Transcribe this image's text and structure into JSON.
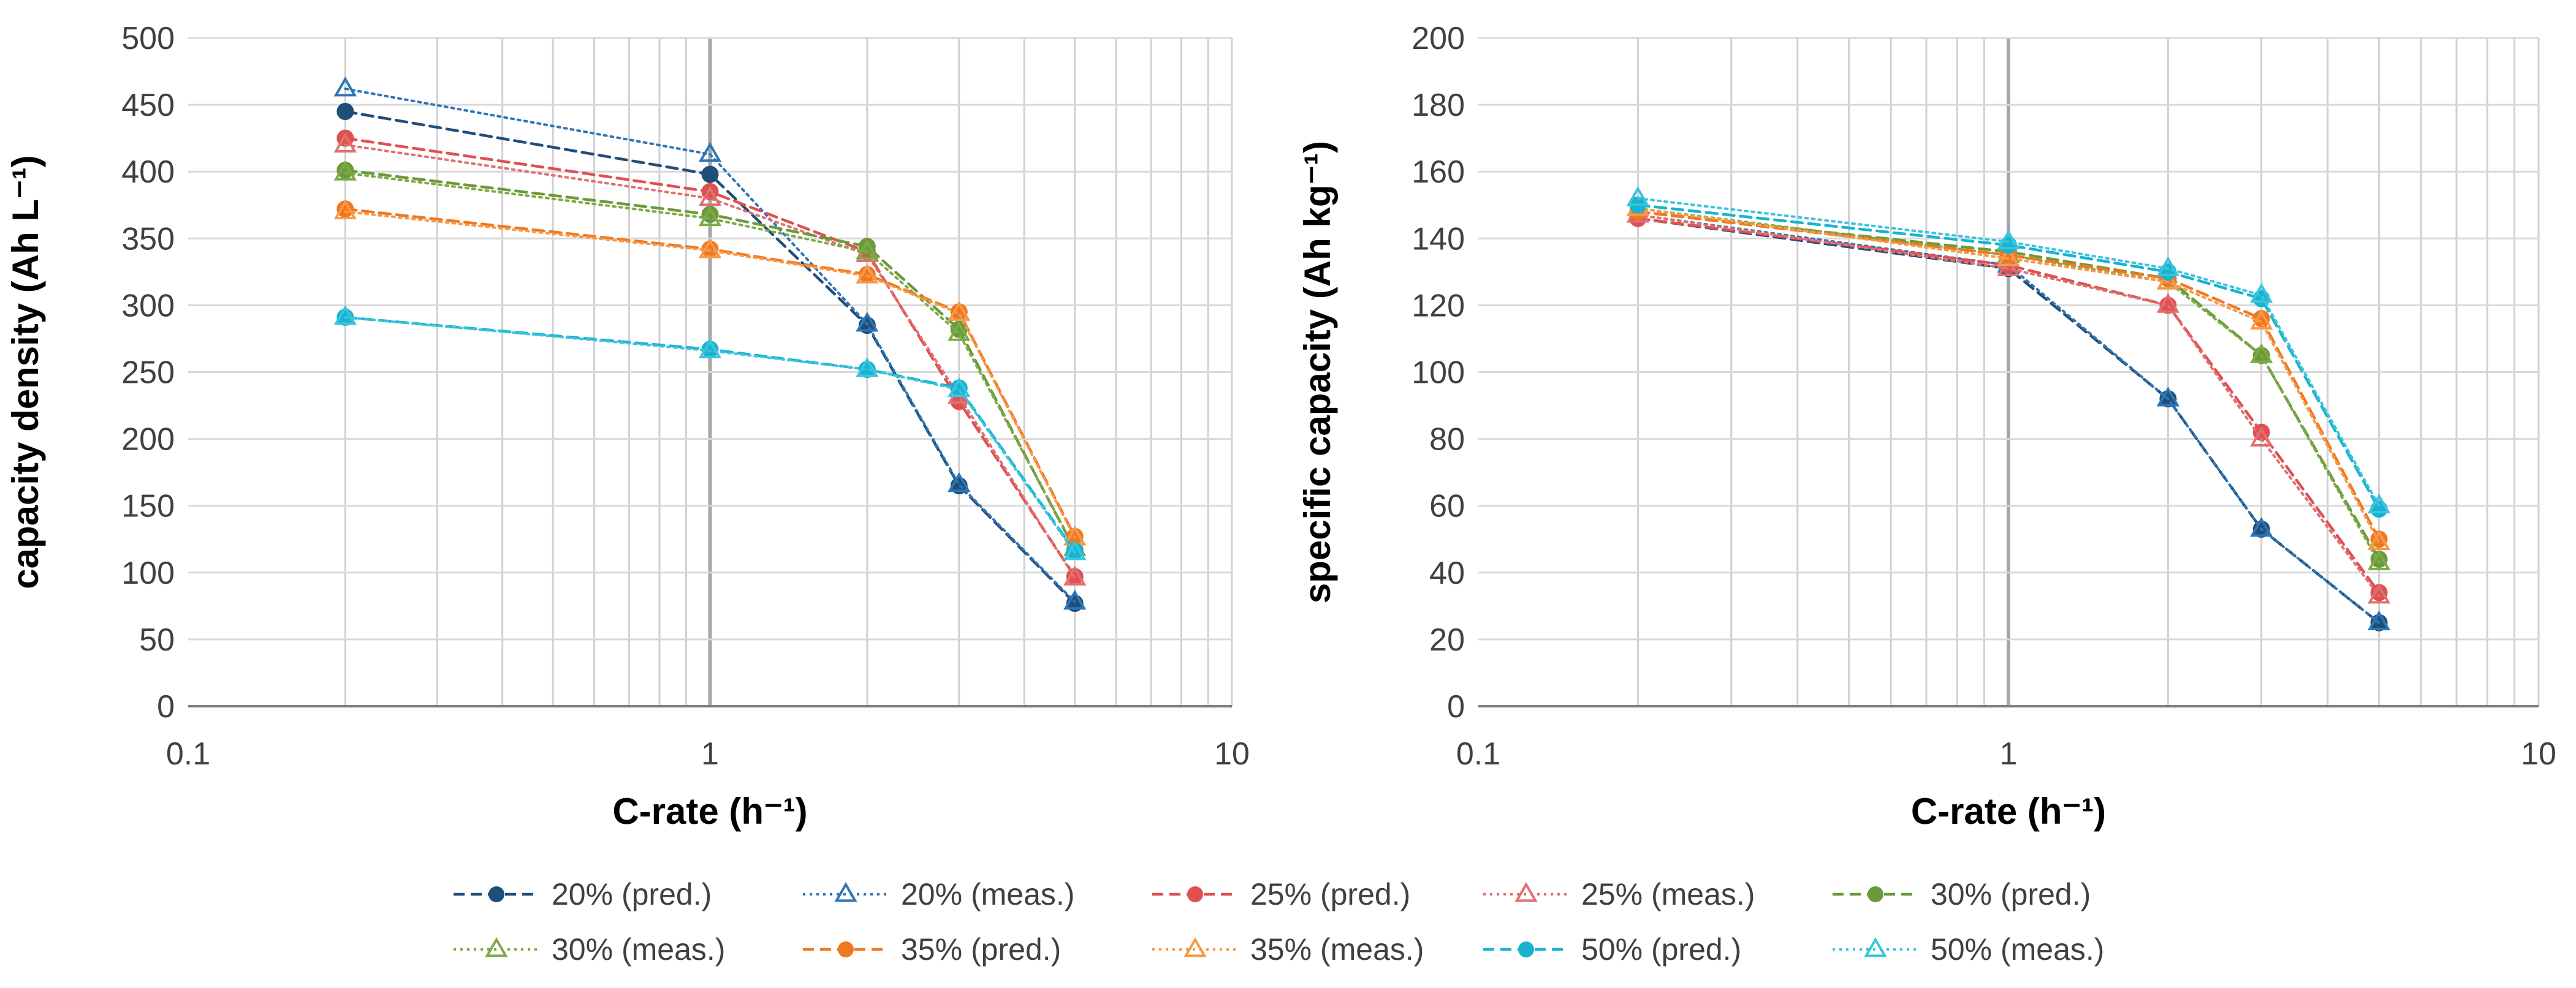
{
  "figure": {
    "legend": [
      {
        "label": "20% (pred.)",
        "color": "#1F4E79",
        "marker": "circle",
        "dash": "dashed"
      },
      {
        "label": "20% (meas.)",
        "color": "#2E75B6",
        "marker": "triangle-open",
        "dash": "dotted"
      },
      {
        "label": "25% (pred.)",
        "color": "#E05050",
        "marker": "circle",
        "dash": "dashed"
      },
      {
        "label": "25% (meas.)",
        "color": "#E07070",
        "marker": "triangle-open",
        "dash": "dotted"
      },
      {
        "label": "30% (pred.)",
        "color": "#6B9A3A",
        "marker": "circle",
        "dash": "dashed"
      },
      {
        "label": "30% (meas.)",
        "color": "#7DAA45",
        "marker": "triangle-open",
        "dash": "dotted"
      },
      {
        "label": "35% (pred.)",
        "color": "#F07820",
        "marker": "circle",
        "dash": "dashed"
      },
      {
        "label": "35% (meas.)",
        "color": "#F59A4A",
        "marker": "triangle-open",
        "dash": "dotted"
      },
      {
        "label": "50% (pred.)",
        "color": "#17B3D0",
        "marker": "circle",
        "dash": "dashed"
      },
      {
        "label": "50% (meas.)",
        "color": "#3CC4DE",
        "marker": "triangle-open",
        "dash": "dotted"
      }
    ]
  },
  "chart_data": [
    {
      "type": "line",
      "title": "",
      "xlabel": "C-rate (h⁻¹)",
      "ylabel": "capacity density (Ah L⁻¹)",
      "xscale": "log",
      "xlim": [
        0.1,
        10
      ],
      "ylim": [
        0,
        500
      ],
      "xticks": [
        "0.1",
        "1",
        "10"
      ],
      "yticks": [
        "0",
        "50",
        "100",
        "150",
        "200",
        "250",
        "300",
        "350",
        "400",
        "450",
        "500"
      ],
      "x": [
        0.2,
        1,
        2,
        3,
        5
      ],
      "series": [
        {
          "name": "20% (pred.)",
          "values": [
            445,
            398,
            285,
            165,
            77
          ]
        },
        {
          "name": "20% (meas.)",
          "values": [
            462,
            413,
            286,
            166,
            78
          ]
        },
        {
          "name": "25% (pred.)",
          "values": [
            425,
            385,
            340,
            228,
            97
          ]
        },
        {
          "name": "25% (meas.)",
          "values": [
            420,
            380,
            338,
            232,
            96
          ]
        },
        {
          "name": "30% (pred.)",
          "values": [
            401,
            368,
            344,
            282,
            117
          ]
        },
        {
          "name": "30% (meas.)",
          "values": [
            399,
            365,
            340,
            279,
            118
          ]
        },
        {
          "name": "35% (pred.)",
          "values": [
            372,
            342,
            323,
            295,
            127
          ]
        },
        {
          "name": "35% (meas.)",
          "values": [
            370,
            341,
            322,
            294,
            126
          ]
        },
        {
          "name": "50% (pred.)",
          "values": [
            291,
            267,
            252,
            238,
            116
          ]
        },
        {
          "name": "50% (meas.)",
          "values": [
            291,
            266,
            252,
            237,
            115
          ]
        }
      ]
    },
    {
      "type": "line",
      "title": "",
      "xlabel": "C-rate (h⁻¹)",
      "ylabel": "specific capacity (Ah kg⁻¹)",
      "xscale": "log",
      "xlim": [
        0.1,
        10
      ],
      "ylim": [
        0,
        200
      ],
      "xticks": [
        "0.1",
        "1",
        "10"
      ],
      "yticks": [
        "0",
        "20",
        "40",
        "60",
        "80",
        "100",
        "120",
        "140",
        "160",
        "180",
        "200"
      ],
      "x": [
        0.2,
        1,
        2,
        3,
        5
      ],
      "series": [
        {
          "name": "20% (pred.)",
          "values": [
            146,
            131,
            92,
            53,
            25
          ]
        },
        {
          "name": "20% (meas.)",
          "values": [
            147,
            132,
            92,
            53,
            25
          ]
        },
        {
          "name": "25% (pred.)",
          "values": [
            146,
            132,
            120,
            82,
            34
          ]
        },
        {
          "name": "25% (meas.)",
          "values": [
            147,
            131,
            120,
            80,
            33
          ]
        },
        {
          "name": "30% (pred.)",
          "values": [
            148,
            136,
            128,
            105,
            44
          ]
        },
        {
          "name": "30% (meas.)",
          "values": [
            149,
            135,
            127,
            105,
            43
          ]
        },
        {
          "name": "35% (pred.)",
          "values": [
            148,
            135,
            128,
            116,
            50
          ]
        },
        {
          "name": "35% (meas.)",
          "values": [
            149,
            134,
            127,
            115,
            49
          ]
        },
        {
          "name": "50% (pred.)",
          "values": [
            150,
            138,
            130,
            122,
            59
          ]
        },
        {
          "name": "50% (meas.)",
          "values": [
            152,
            139,
            131,
            123,
            60
          ]
        }
      ]
    }
  ]
}
